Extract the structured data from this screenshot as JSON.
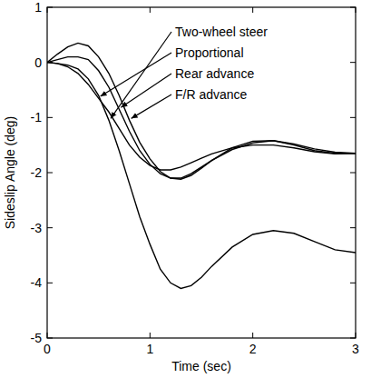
{
  "chart_data": {
    "type": "line",
    "x_label": "Time (sec)",
    "y_label": "Sideslip Angle (deg)",
    "x": [
      0,
      0.1,
      0.2,
      0.3,
      0.4,
      0.5,
      0.6,
      0.7,
      0.8,
      0.9,
      1.0,
      1.1,
      1.2,
      1.3,
      1.4,
      1.5,
      1.6,
      1.8,
      2.0,
      2.2,
      2.4,
      2.6,
      2.8,
      3.0
    ],
    "series": [
      {
        "name": "Two-wheel steer",
        "color": "#000000",
        "values": [
          0,
          -0.02,
          -0.05,
          -0.12,
          -0.3,
          -0.6,
          -1.05,
          -1.6,
          -2.2,
          -2.8,
          -3.3,
          -3.75,
          -4.0,
          -4.1,
          -4.05,
          -3.9,
          -3.7,
          -3.35,
          -3.12,
          -3.05,
          -3.1,
          -3.25,
          -3.4,
          -3.45
        ]
      },
      {
        "name": "Proportional",
        "color": "#000000",
        "values": [
          0,
          -0.02,
          -0.08,
          -0.2,
          -0.4,
          -0.65,
          -0.9,
          -1.2,
          -1.5,
          -1.72,
          -1.87,
          -1.95,
          -1.95,
          -1.9,
          -1.82,
          -1.74,
          -1.66,
          -1.55,
          -1.5,
          -1.5,
          -1.55,
          -1.62,
          -1.66,
          -1.65
        ]
      },
      {
        "name": "Rear advance",
        "color": "#000000",
        "values": [
          0,
          0.05,
          0.1,
          0.1,
          0.05,
          -0.15,
          -0.45,
          -0.85,
          -1.25,
          -1.6,
          -1.85,
          -2.02,
          -2.1,
          -2.1,
          -2.02,
          -1.9,
          -1.78,
          -1.58,
          -1.46,
          -1.42,
          -1.48,
          -1.57,
          -1.63,
          -1.65
        ]
      },
      {
        "name": "F/R advance",
        "color": "#000000",
        "values": [
          0,
          0.15,
          0.28,
          0.35,
          0.3,
          0.1,
          -0.2,
          -0.6,
          -1.05,
          -1.45,
          -1.75,
          -1.98,
          -2.1,
          -2.12,
          -2.05,
          -1.92,
          -1.78,
          -1.55,
          -1.43,
          -1.42,
          -1.5,
          -1.6,
          -1.65,
          -1.65
        ]
      }
    ],
    "xlim": [
      0,
      3
    ],
    "xticks": [
      0,
      1,
      2,
      3
    ],
    "ylim": [
      -5,
      1
    ],
    "yticks": [
      -5,
      -4,
      -3,
      -2,
      -1,
      0,
      1
    ],
    "grid": false
  }
}
